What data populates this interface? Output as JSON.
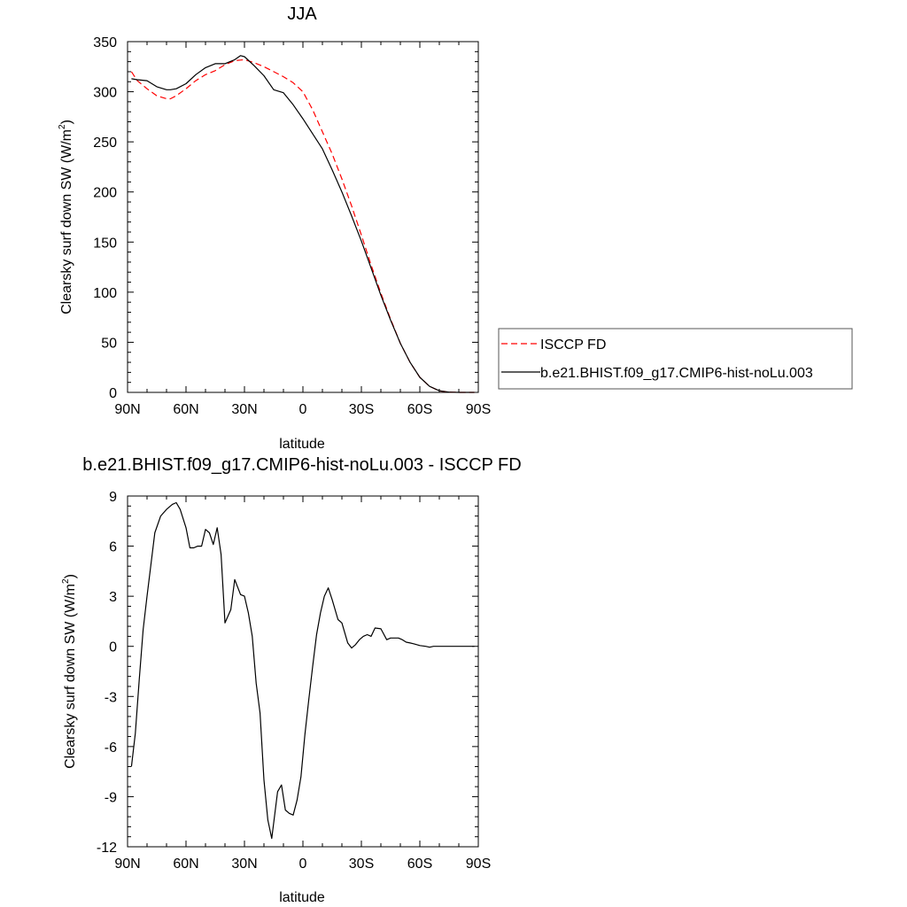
{
  "chart_data": [
    {
      "type": "line",
      "title": "JJA",
      "xlabel": "latitude",
      "ylabel_main": "Clearsky surf down SW (W/m",
      "ylabel_sup": "2",
      "ylabel_close": ")",
      "xlim": [
        90,
        -90
      ],
      "ylim": [
        0,
        350
      ],
      "xticks": [
        {
          "value": 90,
          "label": "90N"
        },
        {
          "value": 60,
          "label": "60N"
        },
        {
          "value": 30,
          "label": "30N"
        },
        {
          "value": 0,
          "label": "0"
        },
        {
          "value": -30,
          "label": "30S"
        },
        {
          "value": -60,
          "label": "60S"
        },
        {
          "value": -90,
          "label": "90S"
        }
      ],
      "yticks": [
        {
          "value": 0,
          "label": "0"
        },
        {
          "value": 50,
          "label": "50"
        },
        {
          "value": 100,
          "label": "100"
        },
        {
          "value": 150,
          "label": "150"
        },
        {
          "value": 200,
          "label": "200"
        },
        {
          "value": 250,
          "label": "250"
        },
        {
          "value": 300,
          "label": "300"
        },
        {
          "value": 350,
          "label": "350"
        }
      ],
      "legend_position": "right",
      "series": [
        {
          "name": "ISCCP FD",
          "color": "#ff0000",
          "dash": "dashed",
          "x": [
            88,
            85,
            80,
            75,
            70,
            68,
            65,
            60,
            55,
            50,
            45,
            40,
            35,
            30,
            25,
            20,
            15,
            10,
            5,
            0,
            -5,
            -10,
            -15,
            -20,
            -25,
            -30,
            -35,
            -40,
            -45,
            -50,
            -55,
            -60,
            -65,
            -70,
            -75,
            -80,
            -85,
            -88
          ],
          "y": [
            320,
            311,
            303,
            296,
            293,
            293,
            296,
            303,
            311,
            317,
            321,
            327,
            331,
            332,
            329,
            325,
            320,
            315,
            309,
            300,
            282,
            260,
            238,
            213,
            186,
            157,
            127,
            99,
            73,
            49,
            30,
            15,
            6,
            1.5,
            0.3,
            0,
            0,
            0
          ]
        },
        {
          "name": "b.e21.BHIST.f09_g17.CMIP6-hist-noLu.003",
          "color": "#000000",
          "dash": "solid",
          "x": [
            88,
            85,
            80,
            75,
            70,
            68,
            65,
            60,
            55,
            50,
            45,
            40,
            35,
            32,
            30,
            25,
            20,
            15,
            10,
            5,
            0,
            -5,
            -10,
            -15,
            -20,
            -25,
            -30,
            -35,
            -40,
            -45,
            -50,
            -55,
            -60,
            -65,
            -70,
            -75,
            -80,
            -85,
            -88
          ],
          "y": [
            313,
            312,
            311,
            305,
            302,
            302,
            303,
            308,
            317,
            324,
            328,
            328,
            332,
            336,
            335,
            326,
            316,
            302,
            299,
            287,
            273,
            258,
            243,
            222,
            200,
            176,
            151,
            124,
            97,
            72,
            49,
            30,
            15,
            6,
            1.6,
            0.3,
            0,
            0,
            0
          ]
        }
      ]
    },
    {
      "type": "line",
      "title": "b.e21.BHIST.f09_g17.CMIP6-hist-noLu.003 - ISCCP FD",
      "xlabel": "latitude",
      "ylabel_main": "Clearsky surf down SW (W/m",
      "ylabel_sup": "2",
      "ylabel_close": ")",
      "xlim": [
        90,
        -90
      ],
      "ylim": [
        -12,
        9
      ],
      "xticks": [
        {
          "value": 90,
          "label": "90N"
        },
        {
          "value": 60,
          "label": "60N"
        },
        {
          "value": 30,
          "label": "30N"
        },
        {
          "value": 0,
          "label": "0"
        },
        {
          "value": -30,
          "label": "30S"
        },
        {
          "value": -60,
          "label": "60S"
        },
        {
          "value": -90,
          "label": "90S"
        }
      ],
      "yticks": [
        {
          "value": -12,
          "label": "-12"
        },
        {
          "value": -9,
          "label": "-9"
        },
        {
          "value": -6,
          "label": "-6"
        },
        {
          "value": -3,
          "label": "-3"
        },
        {
          "value": 0,
          "label": "0"
        },
        {
          "value": 3,
          "label": "3"
        },
        {
          "value": 6,
          "label": "6"
        },
        {
          "value": 9,
          "label": "9"
        }
      ],
      "series": [
        {
          "color": "#000000",
          "dash": "solid",
          "x": [
            88,
            86,
            84,
            82,
            80,
            78,
            76,
            73,
            70,
            67,
            65,
            63,
            60,
            58,
            56,
            54,
            52,
            50,
            48,
            46,
            44,
            42,
            40,
            37,
            35,
            32,
            30,
            28,
            26,
            24,
            22,
            20,
            18,
            16,
            13,
            11,
            9,
            7,
            5,
            3,
            1,
            -1,
            -3,
            -5,
            -7,
            -9,
            -11,
            -13,
            -15,
            -18,
            -20,
            -23,
            -25,
            -27,
            -29,
            -31,
            -33,
            -35,
            -37,
            -40,
            -43,
            -45,
            -47,
            -49,
            -51,
            -53,
            -55,
            -57,
            -60,
            -63,
            -65,
            -67,
            -70,
            -73,
            -75,
            -77,
            -80,
            -83,
            -85,
            -88
          ],
          "y": [
            -7.2,
            -5.2,
            -2,
            1,
            3,
            4.9,
            6.8,
            7.8,
            8.2,
            8.5,
            8.6,
            8.2,
            7.1,
            5.9,
            5.9,
            6,
            6,
            7,
            6.8,
            6.1,
            7.1,
            5.5,
            1.4,
            2.2,
            4,
            3.1,
            3,
            2,
            0.6,
            -2.2,
            -4,
            -8,
            -10.4,
            -11.5,
            -8.7,
            -8.3,
            -9.8,
            -10,
            -10.1,
            -9.2,
            -7.8,
            -5.3,
            -3.2,
            -1.2,
            0.7,
            2,
            3,
            3.5,
            2.8,
            1.6,
            1.4,
            0.2,
            -0.1,
            0.1,
            0.4,
            0.6,
            0.7,
            0.6,
            1.1,
            1.05,
            0.4,
            0.5,
            0.5,
            0.5,
            0.4,
            0.25,
            0.2,
            0.15,
            0.05,
            0,
            -0.05,
            0,
            0,
            0,
            0,
            0,
            0,
            0,
            0,
            0
          ]
        }
      ]
    }
  ]
}
